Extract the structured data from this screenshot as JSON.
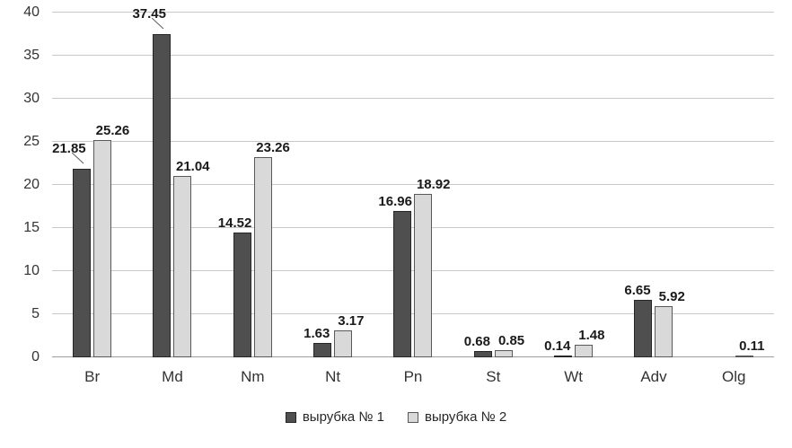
{
  "chart_data": {
    "type": "bar",
    "title": "",
    "xlabel": "",
    "ylabel": "",
    "categories": [
      "Br",
      "Md",
      "Nm",
      "Nt",
      "Pn",
      "St",
      "Wt",
      "Adv",
      "Olg"
    ],
    "series": [
      {
        "name": "вырубка № 1",
        "values": [
          21.85,
          37.45,
          14.52,
          1.63,
          16.96,
          0.68,
          0.14,
          6.65,
          0
        ],
        "labels": [
          "21.85",
          "37.45",
          "14.52",
          "1.63",
          "16.96",
          "0.68",
          "0.14",
          "6.65",
          ""
        ],
        "color": "#4f4f4f",
        "border_color": "#262626"
      },
      {
        "name": "вырубка № 2",
        "values": [
          25.26,
          21.04,
          23.26,
          3.17,
          18.92,
          0.85,
          1.48,
          5.92,
          0.11
        ],
        "labels": [
          "25.26",
          "21.04",
          "23.26",
          "3.17",
          "18.92",
          "0.85",
          "1.48",
          "5.92",
          "0.11"
        ],
        "color": "#d9d9d9",
        "border_color": "#595959"
      }
    ],
    "ylim": [
      0,
      40
    ],
    "ytick_step": 5,
    "ytick_labels": [
      "0",
      "5",
      "10",
      "15",
      "20",
      "25",
      "30",
      "35",
      "40"
    ],
    "grid": "horizontal",
    "legend_position": "bottom",
    "label_callouts": [
      {
        "series": 0,
        "category": 0
      },
      {
        "series": 0,
        "category": 1
      }
    ],
    "colors": {
      "grid": "#c9c9c9",
      "axis": "#9e9e9e",
      "label_text": "#1a1a1a",
      "leader_line": "#595959"
    }
  }
}
